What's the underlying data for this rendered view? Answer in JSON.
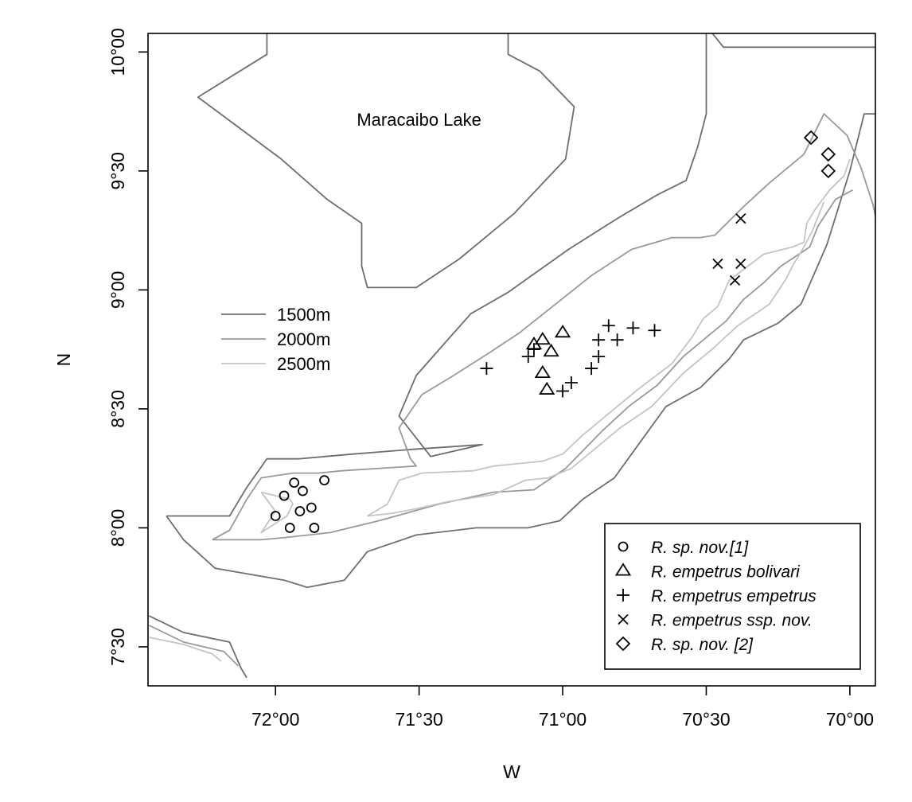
{
  "chart_data": {
    "type": "scatter",
    "xlabel": "W",
    "ylabel": "N",
    "x_reversed": true,
    "xlim": [
      72.444,
      69.911
    ],
    "ylim": [
      7.336,
      10.078
    ],
    "x_ticks": [
      {
        "value": 72.0,
        "label": "72°00"
      },
      {
        "value": 71.5,
        "label": "71°30"
      },
      {
        "value": 71.0,
        "label": "71°00"
      },
      {
        "value": 70.5,
        "label": "70°30"
      },
      {
        "value": 70.0,
        "label": "70°00"
      }
    ],
    "y_ticks": [
      {
        "value": 7.5,
        "label": "7°30"
      },
      {
        "value": 8.0,
        "label": "8°00"
      },
      {
        "value": 8.5,
        "label": "8°30"
      },
      {
        "value": 9.0,
        "label": "9°00"
      },
      {
        "value": 9.5,
        "label": "9°30"
      },
      {
        "value": 10.0,
        "label": "10°00"
      }
    ],
    "place_labels": [
      {
        "text": "Maracaibo Lake",
        "lon": 71.5,
        "lat": 9.69
      }
    ],
    "contour_legend": [
      {
        "label": "1500m",
        "color": "#6e6e6e"
      },
      {
        "label": "2000m",
        "color": "#999999"
      },
      {
        "label": "2500m",
        "color": "#c4c4c4"
      }
    ],
    "contours": [
      {
        "level": "1500m",
        "color": "#6e6e6e",
        "lines": [
          [
            [
              72.38,
              8.05
            ],
            [
              72.16,
              8.05
            ],
            [
              72.1,
              8.17
            ],
            [
              72.03,
              8.29
            ],
            [
              71.92,
              8.29
            ],
            [
              71.73,
              8.31
            ],
            [
              71.52,
              8.33
            ],
            [
              71.28,
              8.35
            ],
            [
              71.46,
              8.3
            ],
            [
              71.57,
              8.47
            ],
            [
              71.51,
              8.64
            ],
            [
              71.43,
              8.75
            ],
            [
              71.32,
              8.9
            ],
            [
              71.19,
              8.99
            ],
            [
              70.98,
              9.17
            ],
            [
              70.81,
              9.3
            ],
            [
              70.67,
              9.4
            ],
            [
              70.57,
              9.46
            ],
            [
              70.53,
              9.6
            ],
            [
              70.5,
              9.74
            ],
            [
              70.5,
              9.86
            ],
            [
              70.5,
              10.11
            ]
          ],
          [
            [
              70.5,
              10.11
            ],
            [
              70.44,
              10.02
            ],
            [
              70.28,
              10.02
            ],
            [
              69.91,
              10.02
            ]
          ],
          [
            [
              69.91,
              9.74
            ],
            [
              69.95,
              9.74
            ],
            [
              70.0,
              9.5
            ],
            [
              70.08,
              9.19
            ],
            [
              70.17,
              8.94
            ],
            [
              70.25,
              8.86
            ],
            [
              70.37,
              8.79
            ],
            [
              70.42,
              8.71
            ],
            [
              70.52,
              8.59
            ],
            [
              70.64,
              8.51
            ],
            [
              70.76,
              8.31
            ],
            [
              70.82,
              8.21
            ],
            [
              70.93,
              8.12
            ],
            [
              71.01,
              8.03
            ],
            [
              71.12,
              8.0
            ],
            [
              71.3,
              8.0
            ],
            [
              71.51,
              7.97
            ],
            [
              71.68,
              7.9
            ],
            [
              71.76,
              7.78
            ],
            [
              71.89,
              7.75
            ],
            [
              71.97,
              7.78
            ],
            [
              72.21,
              7.83
            ],
            [
              72.32,
              7.95
            ],
            [
              72.38,
              8.05
            ]
          ],
          [
            [
              72.44,
              7.63
            ],
            [
              72.32,
              7.56
            ],
            [
              72.16,
              7.52
            ],
            [
              72.12,
              7.41
            ],
            [
              72.1,
              7.37
            ]
          ],
          [
            [
              72.03,
              10.11
            ],
            [
              72.03,
              9.99
            ],
            [
              72.27,
              9.81
            ],
            [
              71.98,
              9.55
            ],
            [
              71.82,
              9.38
            ],
            [
              71.7,
              9.28
            ],
            [
              71.7,
              9.1
            ],
            [
              71.68,
              9.01
            ],
            [
              71.51,
              9.01
            ],
            [
              71.36,
              9.13
            ],
            [
              71.17,
              9.32
            ],
            [
              70.99,
              9.55
            ],
            [
              70.96,
              9.77
            ],
            [
              71.08,
              9.92
            ],
            [
              71.19,
              9.99
            ],
            [
              71.19,
              10.11
            ]
          ]
        ]
      },
      {
        "level": "2000m",
        "color": "#999999",
        "lines": [
          [
            [
              72.22,
              7.95
            ],
            [
              72.16,
              7.99
            ],
            [
              72.1,
              8.12
            ],
            [
              72.05,
              8.21
            ],
            [
              71.94,
              8.23
            ],
            [
              71.85,
              8.23
            ],
            [
              71.77,
              8.24
            ],
            [
              71.51,
              8.26
            ],
            [
              71.53,
              8.29
            ],
            [
              71.57,
              8.42
            ],
            [
              71.49,
              8.56
            ],
            [
              71.38,
              8.64
            ],
            [
              71.25,
              8.74
            ],
            [
              71.15,
              8.82
            ],
            [
              70.9,
              9.06
            ],
            [
              70.76,
              9.17
            ],
            [
              70.62,
              9.22
            ],
            [
              70.52,
              9.22
            ],
            [
              70.47,
              9.23
            ],
            [
              70.37,
              9.35
            ],
            [
              70.28,
              9.45
            ],
            [
              70.16,
              9.57
            ],
            [
              70.09,
              9.74
            ],
            [
              70.09,
              9.74
            ],
            [
              70.01,
              9.65
            ],
            [
              69.96,
              9.51
            ],
            [
              69.92,
              9.36
            ],
            [
              69.9,
              9.25
            ]
          ],
          [
            [
              72.22,
              7.95
            ],
            [
              72.05,
              7.95
            ],
            [
              71.96,
              7.96
            ],
            [
              71.81,
              7.98
            ],
            [
              71.64,
              8.03
            ],
            [
              71.43,
              8.1
            ],
            [
              71.24,
              8.15
            ],
            [
              71.1,
              8.16
            ],
            [
              70.99,
              8.25
            ],
            [
              70.86,
              8.41
            ],
            [
              70.77,
              8.51
            ],
            [
              70.67,
              8.6
            ],
            [
              70.58,
              8.72
            ],
            [
              70.48,
              8.82
            ],
            [
              70.43,
              8.87
            ],
            [
              70.37,
              8.96
            ],
            [
              70.3,
              9.03
            ],
            [
              70.24,
              9.1
            ],
            [
              70.14,
              9.18
            ],
            [
              70.11,
              9.27
            ],
            [
              70.05,
              9.38
            ],
            [
              69.99,
              9.42
            ]
          ],
          [
            [
              72.44,
              7.59
            ],
            [
              72.32,
              7.52
            ],
            [
              72.18,
              7.48
            ],
            [
              72.13,
              7.42
            ]
          ]
        ]
      },
      {
        "level": "2500m",
        "color": "#c4c4c4",
        "lines": [
          [
            [
              72.05,
              8.15
            ],
            [
              71.95,
              8.12
            ],
            [
              71.94,
              8.1
            ],
            [
              71.96,
              8.05
            ],
            [
              72.05,
              7.98
            ],
            [
              72.0,
              8.07
            ],
            [
              72.05,
              8.15
            ]
          ],
          [
            [
              71.68,
              8.05
            ],
            [
              71.61,
              8.1
            ],
            [
              71.57,
              8.2
            ],
            [
              71.49,
              8.23
            ],
            [
              71.31,
              8.24
            ],
            [
              71.24,
              8.26
            ],
            [
              71.07,
              8.28
            ],
            [
              71.0,
              8.31
            ],
            [
              70.93,
              8.39
            ],
            [
              70.83,
              8.49
            ],
            [
              70.74,
              8.58
            ],
            [
              70.62,
              8.69
            ],
            [
              70.55,
              8.8
            ],
            [
              70.51,
              8.88
            ],
            [
              70.46,
              8.93
            ],
            [
              70.42,
              9.04
            ],
            [
              70.3,
              9.15
            ],
            [
              70.2,
              9.18
            ],
            [
              70.16,
              9.2
            ],
            [
              70.15,
              9.28
            ],
            [
              70.12,
              9.34
            ],
            [
              70.07,
              9.42
            ],
            [
              70.02,
              9.48
            ],
            [
              70.0,
              9.55
            ],
            [
              70.0,
              9.55
            ]
          ],
          [
            [
              71.68,
              8.05
            ],
            [
              71.6,
              8.06
            ],
            [
              71.51,
              8.08
            ],
            [
              71.4,
              8.11
            ],
            [
              71.24,
              8.14
            ],
            [
              71.13,
              8.2
            ],
            [
              71.05,
              8.21
            ],
            [
              70.97,
              8.25
            ],
            [
              70.88,
              8.34
            ],
            [
              70.8,
              8.42
            ],
            [
              70.69,
              8.51
            ],
            [
              70.58,
              8.65
            ],
            [
              70.48,
              8.75
            ],
            [
              70.39,
              8.85
            ],
            [
              70.28,
              8.94
            ],
            [
              70.22,
              9.05
            ],
            [
              70.2,
              9.1
            ],
            [
              70.16,
              9.18
            ],
            [
              70.13,
              9.25
            ],
            [
              70.09,
              9.37
            ]
          ],
          [
            [
              72.44,
              7.54
            ],
            [
              72.32,
              7.51
            ],
            [
              72.22,
              7.47
            ],
            [
              72.19,
              7.44
            ]
          ]
        ]
      }
    ],
    "point_legend": [
      {
        "symbol": "circle",
        "label": "R. sp. nov.[1]"
      },
      {
        "symbol": "triangle",
        "label": "R. empetrus bolivari"
      },
      {
        "symbol": "plus",
        "label": "R. empetrus empetrus"
      },
      {
        "symbol": "cross",
        "label": "R. empetrus ssp. nov."
      },
      {
        "symbol": "diamond",
        "label": "R. sp. nov. [2]"
      }
    ],
    "series": [
      {
        "name": "R. sp. nov.[1]",
        "symbol": "circle",
        "points": [
          [
            71.935,
            8.19
          ],
          [
            71.83,
            8.2
          ],
          [
            71.97,
            8.135
          ],
          [
            71.905,
            8.155
          ],
          [
            71.875,
            8.085
          ],
          [
            71.915,
            8.07
          ],
          [
            72.0,
            8.05
          ],
          [
            71.95,
            8.0
          ],
          [
            71.865,
            8.0
          ]
        ]
      },
      {
        "name": "R. empetrus bolivari",
        "symbol": "triangle",
        "points": [
          [
            71.0,
            8.82
          ],
          [
            71.07,
            8.79
          ],
          [
            71.1,
            8.77
          ],
          [
            71.04,
            8.74
          ],
          [
            71.07,
            8.65
          ],
          [
            71.055,
            8.58
          ]
        ]
      },
      {
        "name": "R. empetrus empetrus",
        "symbol": "plus",
        "points": [
          [
            71.265,
            8.67
          ],
          [
            71.12,
            8.72
          ],
          [
            71.1,
            8.75
          ],
          [
            70.84,
            8.85
          ],
          [
            70.755,
            8.84
          ],
          [
            70.68,
            8.83
          ],
          [
            70.875,
            8.79
          ],
          [
            70.81,
            8.79
          ],
          [
            70.875,
            8.72
          ],
          [
            70.9,
            8.67
          ],
          [
            70.97,
            8.61
          ],
          [
            71.0,
            8.575
          ]
        ]
      },
      {
        "name": "R. empetrus ssp. nov.",
        "symbol": "cross",
        "points": [
          [
            70.38,
            9.3
          ],
          [
            70.46,
            9.11
          ],
          [
            70.38,
            9.11
          ],
          [
            70.4,
            9.04
          ]
        ]
      },
      {
        "name": "R. sp. nov. [2]",
        "symbol": "diamond",
        "points": [
          [
            70.135,
            9.64
          ],
          [
            70.075,
            9.57
          ],
          [
            70.075,
            9.5
          ]
        ]
      }
    ]
  }
}
